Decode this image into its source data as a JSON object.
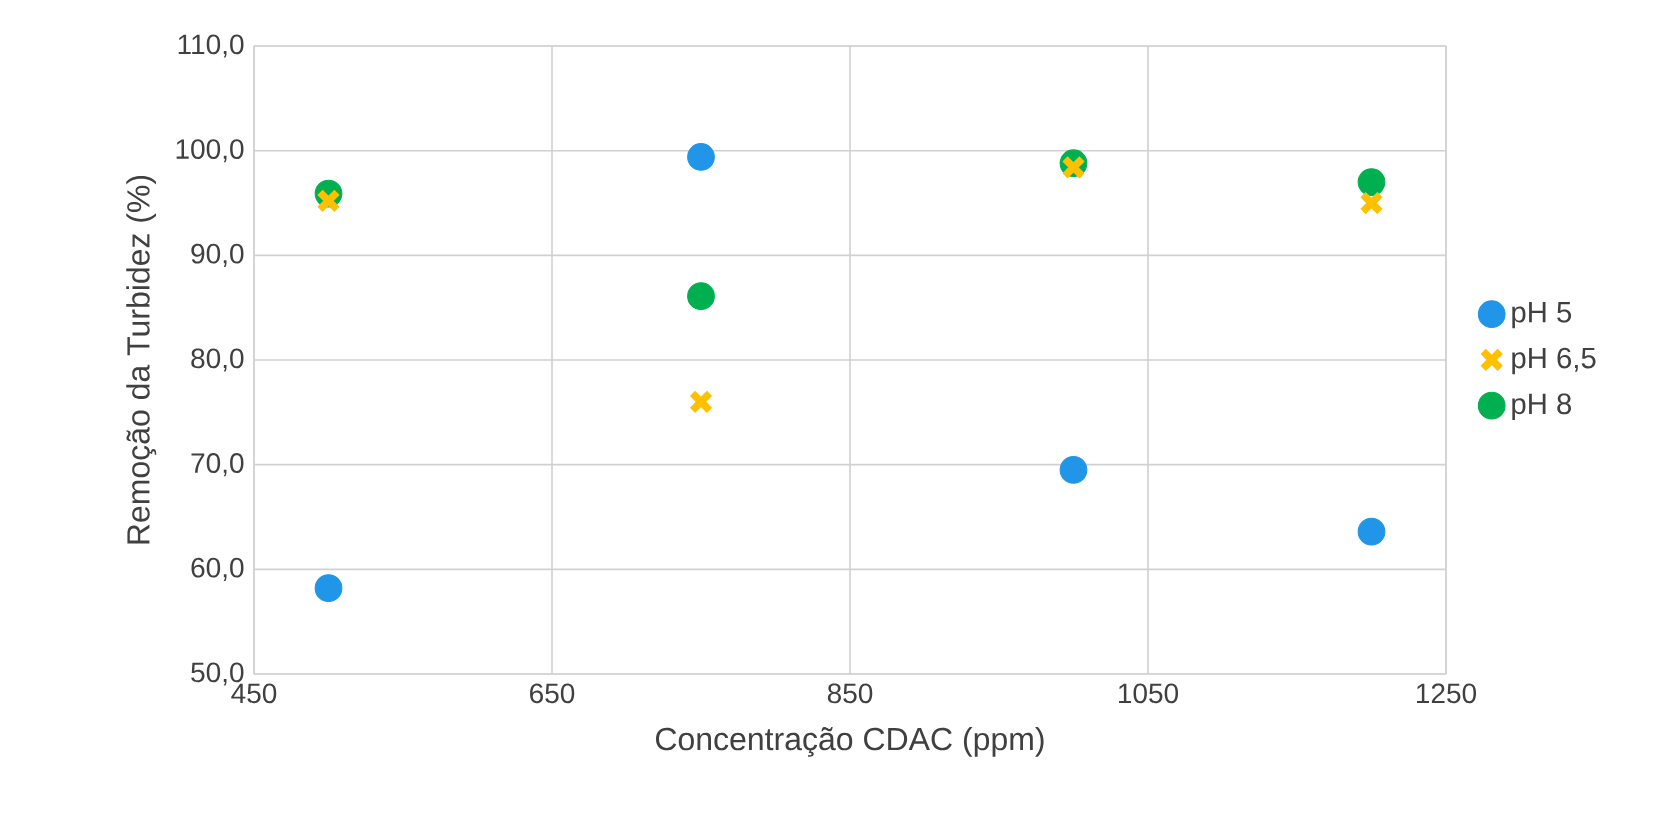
{
  "chart_data": {
    "type": "scatter",
    "xlabel": "Concentração CDAC (ppm)",
    "ylabel": "Remoção da Turbidez (%)",
    "x": [
      500,
      750,
      1000,
      1200
    ],
    "series": [
      {
        "name": "pH 5",
        "color": "#2196e8",
        "marker": "circle",
        "values": [
          58.2,
          99.4,
          69.5,
          63.6
        ]
      },
      {
        "name": "pH 6,5",
        "color": "#ffc000",
        "marker": "cross",
        "values": [
          95.2,
          76.0,
          98.4,
          95.0
        ]
      },
      {
        "name": "pH 8",
        "color": "#00b050",
        "marker": "circle",
        "values": [
          95.9,
          86.1,
          98.8,
          97.0
        ]
      }
    ],
    "xlim": [
      450,
      1250
    ],
    "xticks": [
      450,
      650,
      850,
      1050,
      1250
    ],
    "ylim": [
      50,
      110
    ],
    "yticks": [
      {
        "value": 50,
        "label": "50,0"
      },
      {
        "value": 60,
        "label": "60,0"
      },
      {
        "value": 70,
        "label": "70,0"
      },
      {
        "value": 80,
        "label": "80,0"
      },
      {
        "value": 90,
        "label": "90,0"
      },
      {
        "value": 100,
        "label": "100,0"
      },
      {
        "value": 110,
        "label": "110,0"
      }
    ],
    "grid": true,
    "legend": "right"
  }
}
